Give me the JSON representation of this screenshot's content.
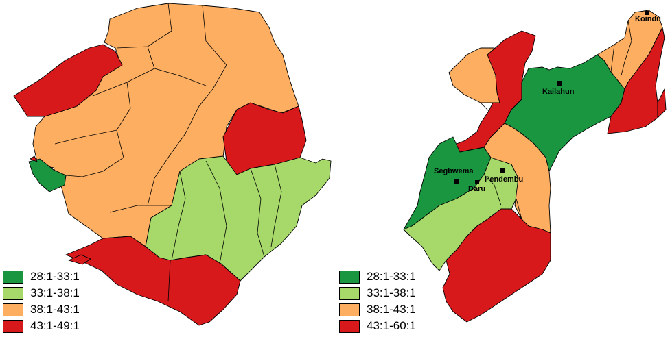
{
  "colors": {
    "c1": "#1a9641",
    "c2": "#a6d96a",
    "c3": "#fdae61",
    "c4": "#d7191c"
  },
  "left_map": {
    "legend": [
      {
        "label": "28:1-33:1",
        "color": "#1a9641"
      },
      {
        "label": "33:1-38:1",
        "color": "#a6d96a"
      },
      {
        "label": "38:1-43:1",
        "color": "#fdae61"
      },
      {
        "label": "43:1-49:1",
        "color": "#d7191c"
      }
    ]
  },
  "right_map": {
    "legend": [
      {
        "label": "28:1-33:1",
        "color": "#1a9641"
      },
      {
        "label": "33:1-38:1",
        "color": "#a6d96a"
      },
      {
        "label": "38:1-43:1",
        "color": "#fdae61"
      },
      {
        "label": "43:1-60:1",
        "color": "#d7191c"
      }
    ],
    "towns": [
      {
        "name": "Koindu"
      },
      {
        "name": "Kailahun"
      },
      {
        "name": "Segbwema"
      },
      {
        "name": "Pendembu"
      },
      {
        "name": "Daru"
      }
    ]
  }
}
